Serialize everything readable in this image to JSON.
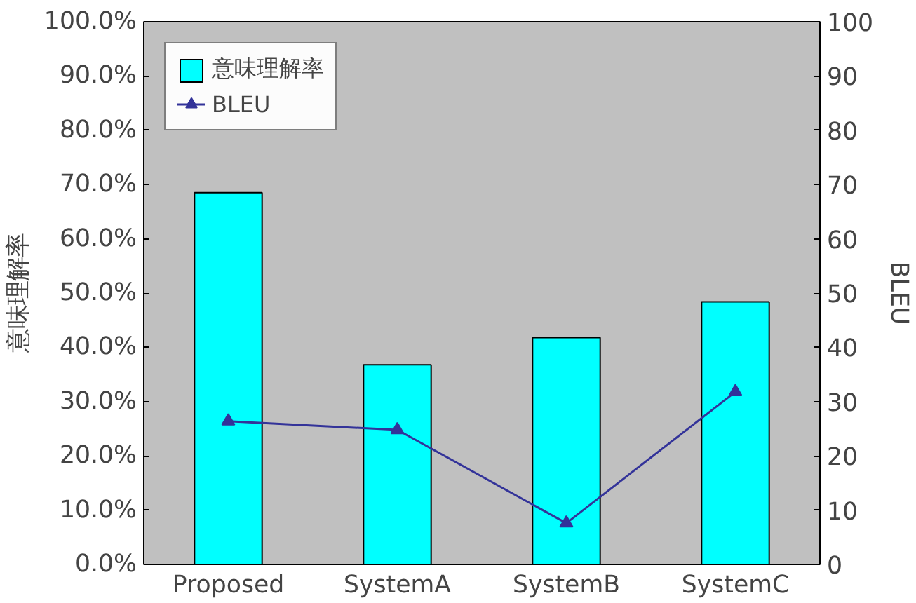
{
  "chart_data": {
    "type": "bar",
    "categories": [
      "Proposed",
      "SystemA",
      "SystemB",
      "SystemC"
    ],
    "ylabel": "意味理解率",
    "y2label": "BLEU",
    "ylim": [
      0,
      100
    ],
    "yticks": [
      {
        "value": 0,
        "label": "0.0%"
      },
      {
        "value": 10,
        "label": "10.0%"
      },
      {
        "value": 20,
        "label": "20.0%"
      },
      {
        "value": 30,
        "label": "30.0%"
      },
      {
        "value": 40,
        "label": "40.0%"
      },
      {
        "value": 50,
        "label": "50.0%"
      },
      {
        "value": 60,
        "label": "60.0%"
      },
      {
        "value": 70,
        "label": "70.0%"
      },
      {
        "value": 80,
        "label": "80.0%"
      },
      {
        "value": 90,
        "label": "90.0%"
      },
      {
        "value": 100,
        "label": "100.0%"
      }
    ],
    "y2lim": [
      0,
      100
    ],
    "y2ticks": [
      0,
      10,
      20,
      30,
      40,
      50,
      60,
      70,
      80,
      90,
      100
    ],
    "series": [
      {
        "name": "意味理解率",
        "color": "#00ffff",
        "values": [
          68.5,
          36.8,
          41.8,
          48.4
        ]
      },
      {
        "name": "BLEU",
        "type": "line",
        "axis": "y2",
        "color": "#333399",
        "marker": "triangle",
        "values": [
          26.4,
          24.8,
          7.6,
          31.8
        ]
      }
    ],
    "grid": false,
    "legend": "top left"
  }
}
